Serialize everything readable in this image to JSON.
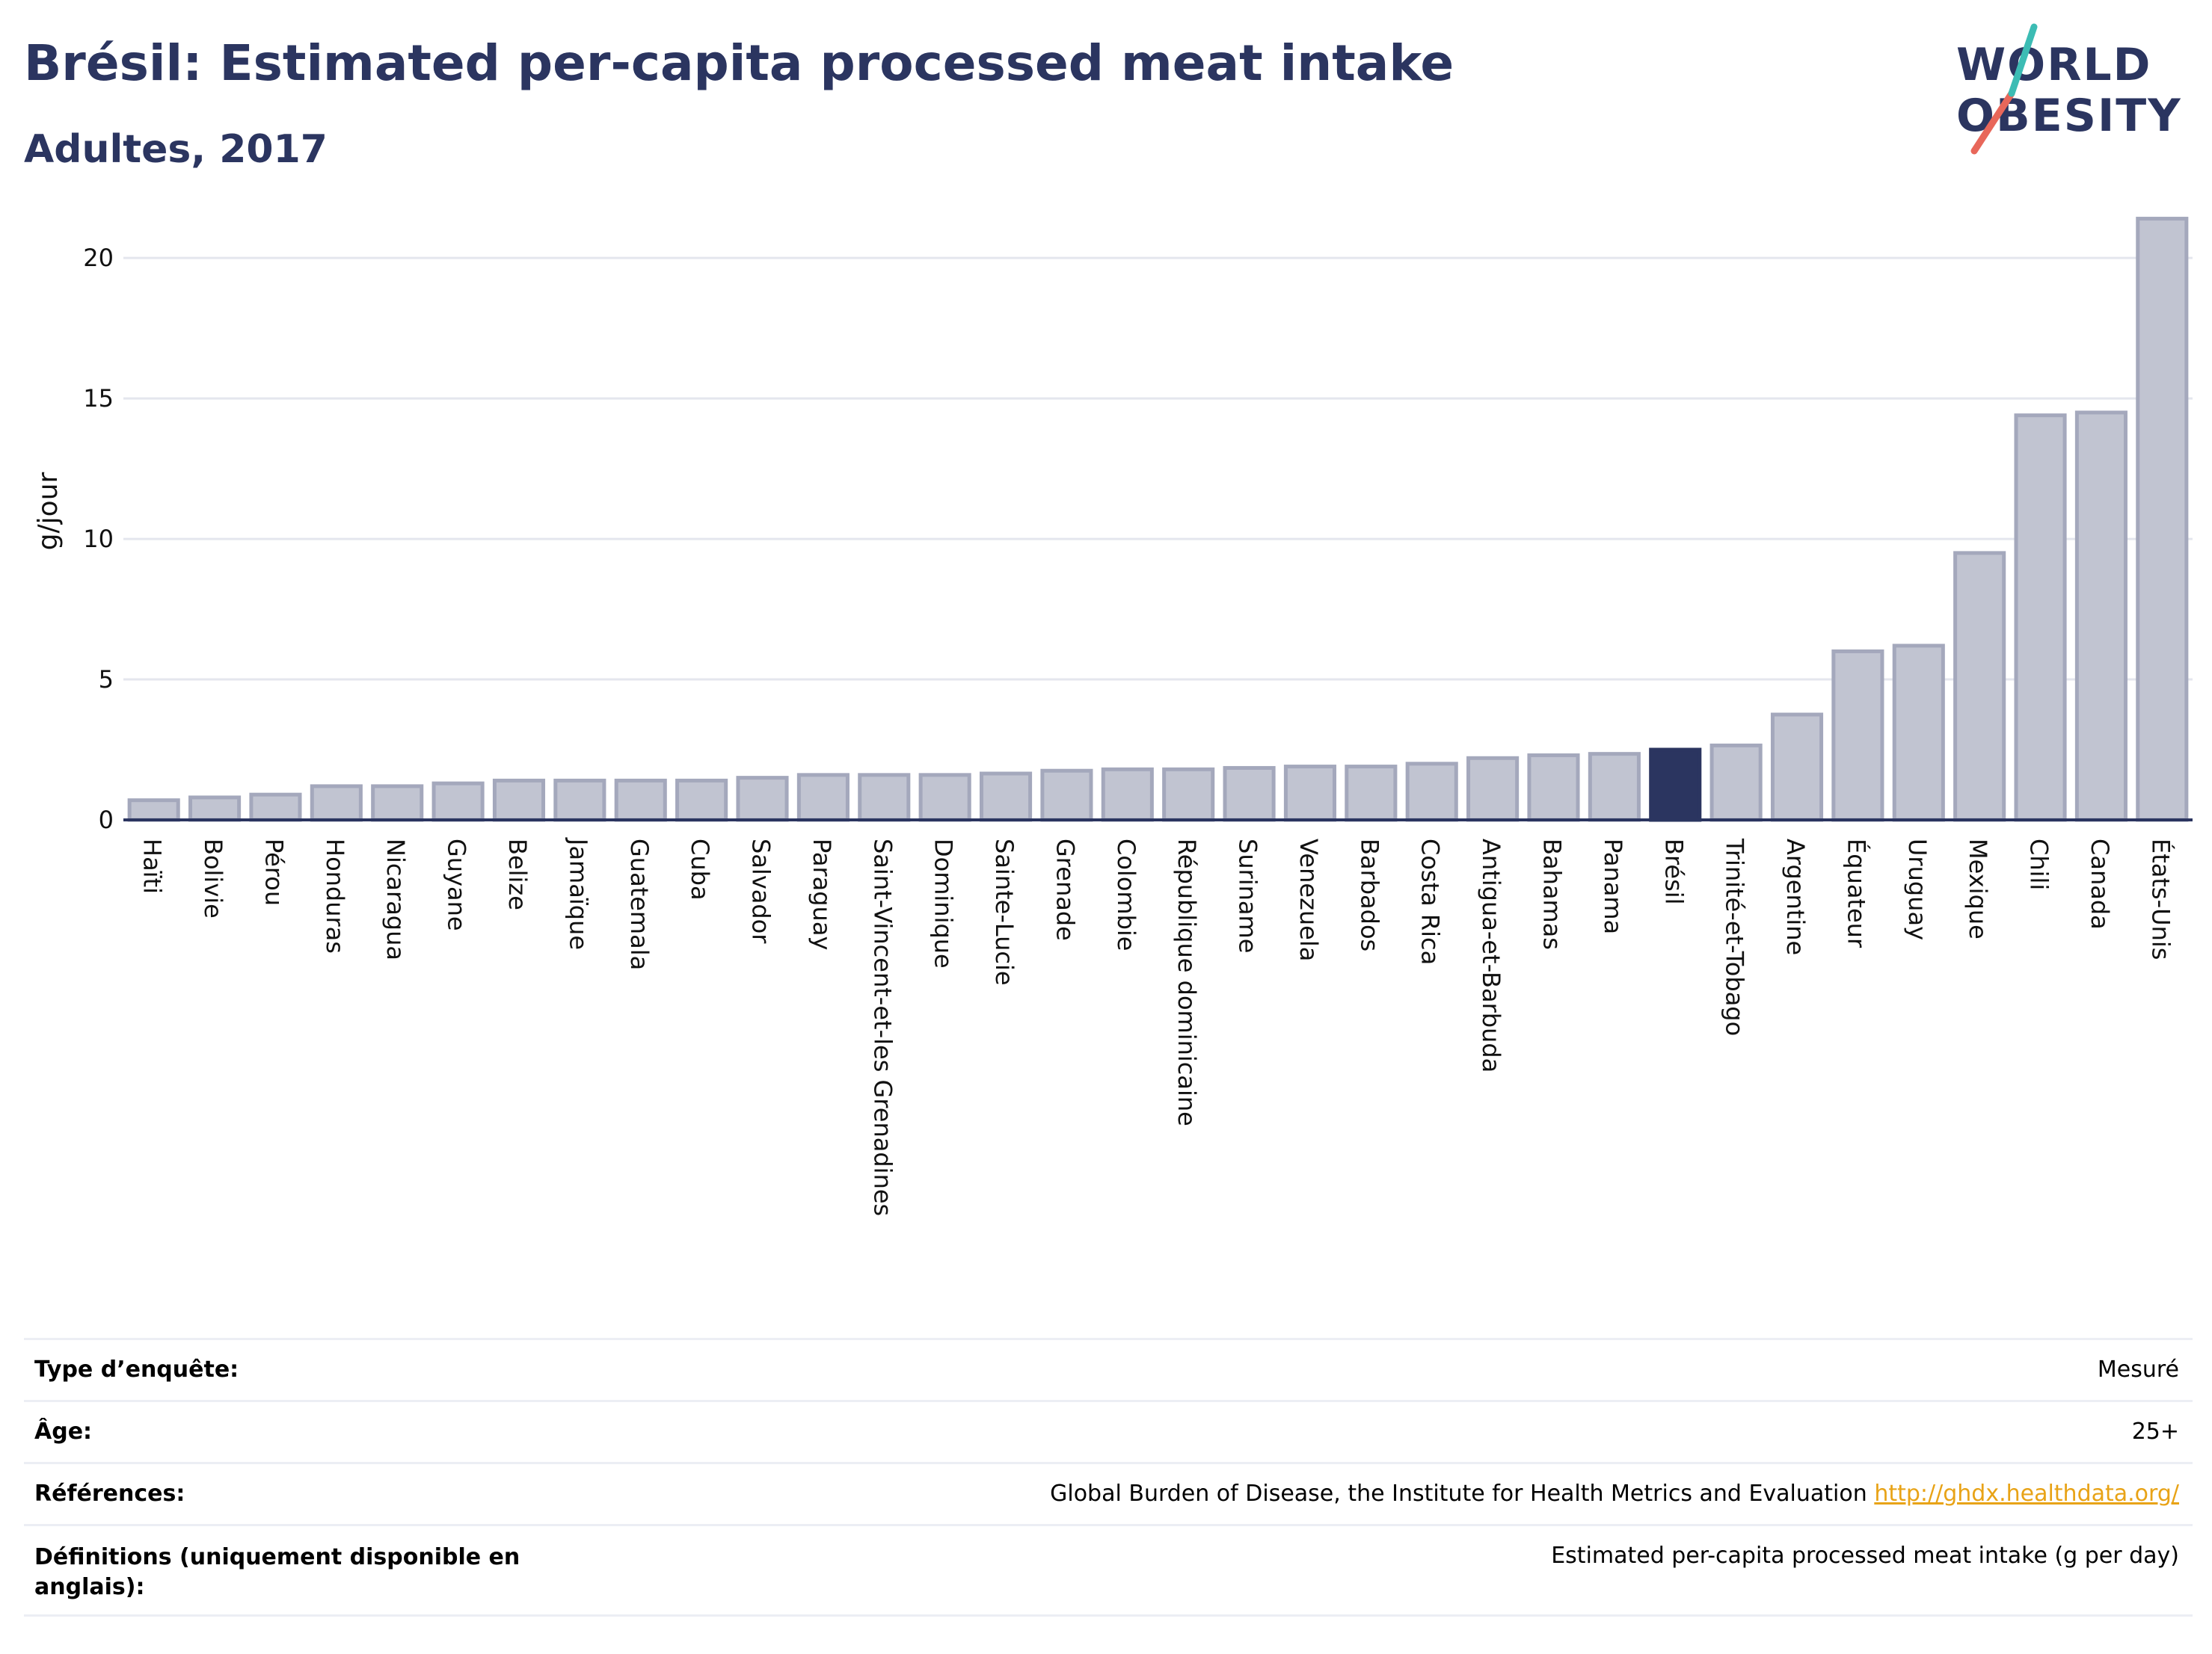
{
  "header": {
    "title": "Brésil: Estimated per-capita processed meat intake",
    "subtitle": "Adultes, 2017"
  },
  "logo": {
    "line1": "WORLD",
    "line2": "OBESITY",
    "colors": [
      "#2b3560",
      "#e8675a",
      "#3cbcb4"
    ]
  },
  "colors": {
    "bar": "#c1c4d1",
    "bar_stroke": "#a4a8bc",
    "highlight": "#2b3560",
    "axis": "#2b3560",
    "grid": "#e4e6ee"
  },
  "chart_data": {
    "type": "bar",
    "title": "Brésil: Estimated per-capita processed meat intake",
    "subtitle": "Adultes, 2017",
    "ylabel": "g/jour",
    "xlabel": "",
    "ylim": [
      0,
      22
    ],
    "yticks": [
      0,
      5,
      10,
      15,
      20
    ],
    "grid": true,
    "highlight": "Brésil",
    "categories": [
      "Haïti",
      "Bolivie",
      "Pérou",
      "Honduras",
      "Nicaragua",
      "Guyane",
      "Belize",
      "Jamaïque",
      "Guatemala",
      "Cuba",
      "Salvador",
      "Paraguay",
      "Saint-Vincent-et-les Grenadines",
      "Dominique",
      "Sainte-Lucie",
      "Grenade",
      "Colombie",
      "République dominicaine",
      "Suriname",
      "Venezuela",
      "Barbados",
      "Costa Rica",
      "Antigua-et-Barbuda",
      "Bahamas",
      "Panama",
      "Brésil",
      "Trinité-et-Tobago",
      "Argentine",
      "Équateur",
      "Uruguay",
      "Mexique",
      "Chili",
      "Canada",
      "États-Unis"
    ],
    "values": [
      0.7,
      0.8,
      0.9,
      1.2,
      1.2,
      1.3,
      1.4,
      1.4,
      1.4,
      1.4,
      1.5,
      1.6,
      1.6,
      1.6,
      1.65,
      1.75,
      1.8,
      1.8,
      1.85,
      1.9,
      1.9,
      2.0,
      2.2,
      2.3,
      2.35,
      2.5,
      2.65,
      3.75,
      6.0,
      6.2,
      9.5,
      14.4,
      14.5,
      21.4
    ]
  },
  "info": [
    {
      "label": "Type d’enquête:",
      "value": "Mesuré"
    },
    {
      "label": "Âge:",
      "value": "25+"
    },
    {
      "label": "Références:",
      "value": "Global Burden of Disease, the Institute for Health Metrics and Evaluation",
      "link": "http://ghdx.healthdata.org/"
    },
    {
      "label": "Définitions (uniquement disponible en anglais):",
      "value": "Estimated per-capita processed meat intake (g per day)"
    }
  ]
}
